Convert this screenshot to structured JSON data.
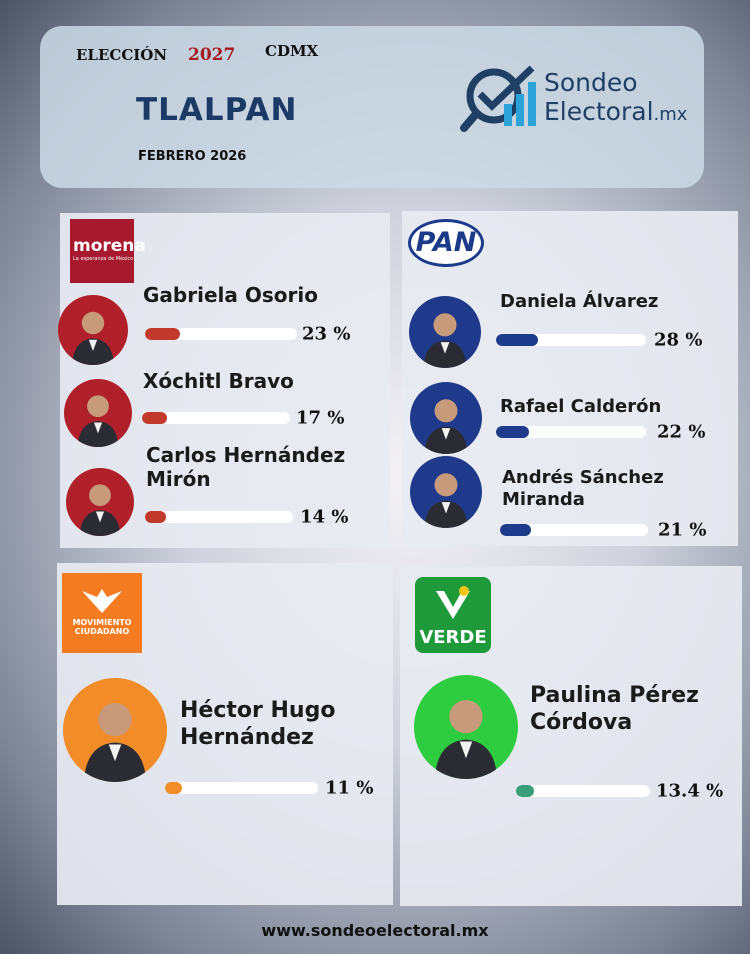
{
  "header": {
    "election": "ELECCIÓN",
    "year": "2027",
    "region": "CDMX",
    "title": "TLALPAN",
    "date": "FEBRERO 2026",
    "brand": {
      "line1": "Sondeo",
      "line2": "Electoral",
      "suffix": ".mx"
    }
  },
  "panels": [
    {
      "party": "morena",
      "party_tagline": "La esperanza de México",
      "candidates": [
        {
          "name": "Gabriela Osorio",
          "value": 23,
          "value_label": "23 %"
        },
        {
          "name": "Xóchitl Bravo",
          "value": 17,
          "value_label": "17 %"
        },
        {
          "name": "Carlos Hernández Mirón",
          "value": 14,
          "value_label": "14 %"
        }
      ]
    },
    {
      "party": "PAN",
      "candidates": [
        {
          "name": "Daniela Álvarez",
          "value": 28,
          "value_label": "28 %"
        },
        {
          "name": "Rafael Calderón",
          "value": 22,
          "value_label": "22 %"
        },
        {
          "name": "Andrés Sánchez Miranda",
          "value": 21,
          "value_label": "21 %"
        }
      ]
    },
    {
      "party": "MOVIMIENTO CIUDADANO",
      "candidates": [
        {
          "name": "Héctor Hugo Hernández",
          "value": 11,
          "value_label": "11 %"
        }
      ]
    },
    {
      "party": "VERDE",
      "candidates": [
        {
          "name": "Paulina Pérez Córdova",
          "value": 13.4,
          "value_label": "13.4 %"
        }
      ]
    }
  ],
  "footer": {
    "url": "www.sondeoelectoral.mx"
  }
}
